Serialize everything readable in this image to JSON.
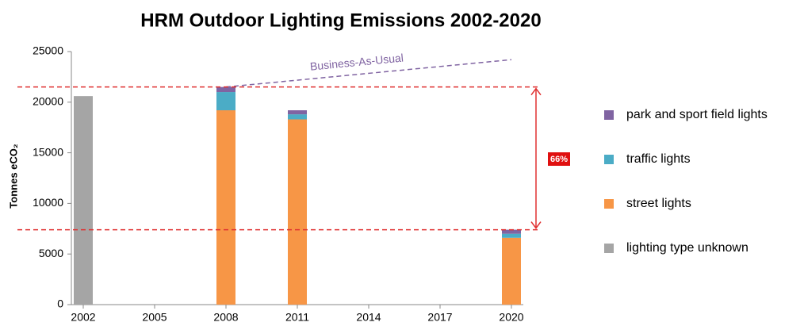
{
  "chart_data": {
    "type": "stacked_bar",
    "title": "HRM Outdoor Lighting Emissions 2002-2020",
    "y_label": "Tonnes eCO₂",
    "x": [
      2002,
      2008,
      2011,
      2020
    ],
    "xlim": [
      2001.5,
      2020.5
    ],
    "xticks": [
      2002,
      2005,
      2008,
      2011,
      2014,
      2017,
      2020
    ],
    "ylim": [
      0,
      25000
    ],
    "yticks": [
      0,
      5000,
      10000,
      15000,
      20000,
      25000
    ],
    "series": [
      {
        "name": "lighting type unknown",
        "color": "#a5a5a5",
        "values": [
          20600,
          null,
          null,
          null
        ]
      },
      {
        "name": "street lights",
        "color": "#f79646",
        "values": [
          null,
          19200,
          18300,
          6600
        ]
      },
      {
        "name": "traffic lights",
        "color": "#4bacc6",
        "values": [
          null,
          1800,
          500,
          400
        ]
      },
      {
        "name": "park and sport field lights",
        "color": "#8064a2",
        "values": [
          null,
          500,
          400,
          400
        ]
      }
    ],
    "bau": {
      "label": "Business-As-Usual",
      "color": "#8064a2",
      "x": [
        2008,
        2020
      ],
      "values": [
        21500,
        24200
      ]
    },
    "reference_lines": [
      21500,
      7400
    ],
    "reference_color": "#e03030",
    "annotation": "66%"
  }
}
